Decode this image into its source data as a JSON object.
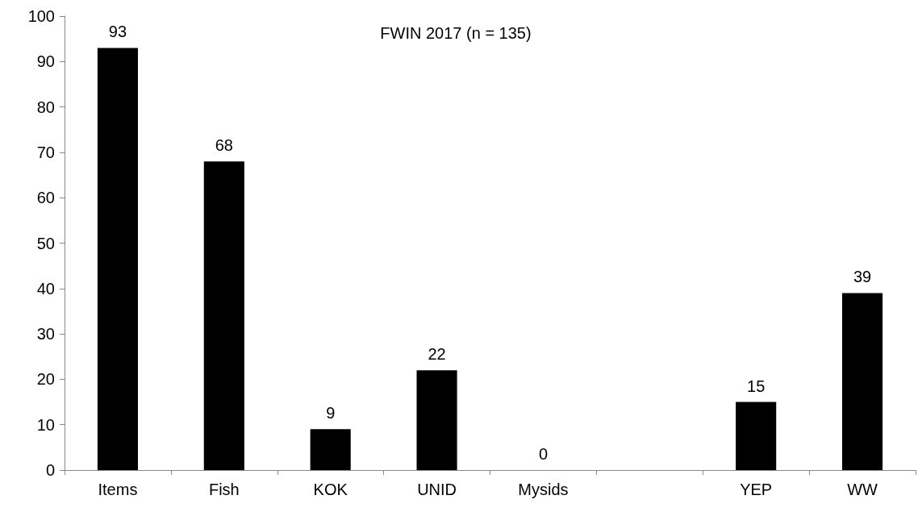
{
  "chart_data": {
    "type": "bar",
    "title": "FWIN 2017 (n = 135)",
    "categories": [
      "Items",
      "Fish",
      "KOK",
      "UNID",
      "Mysids",
      null,
      "YEP",
      "WW"
    ],
    "values": [
      93,
      68,
      9,
      22,
      0,
      null,
      15,
      39
    ],
    "color": "#000000",
    "ylim": [
      0,
      100
    ],
    "yticks": [
      0,
      10,
      20,
      30,
      40,
      50,
      60,
      70,
      80,
      90,
      100
    ],
    "grid": false,
    "data_labels": true
  }
}
